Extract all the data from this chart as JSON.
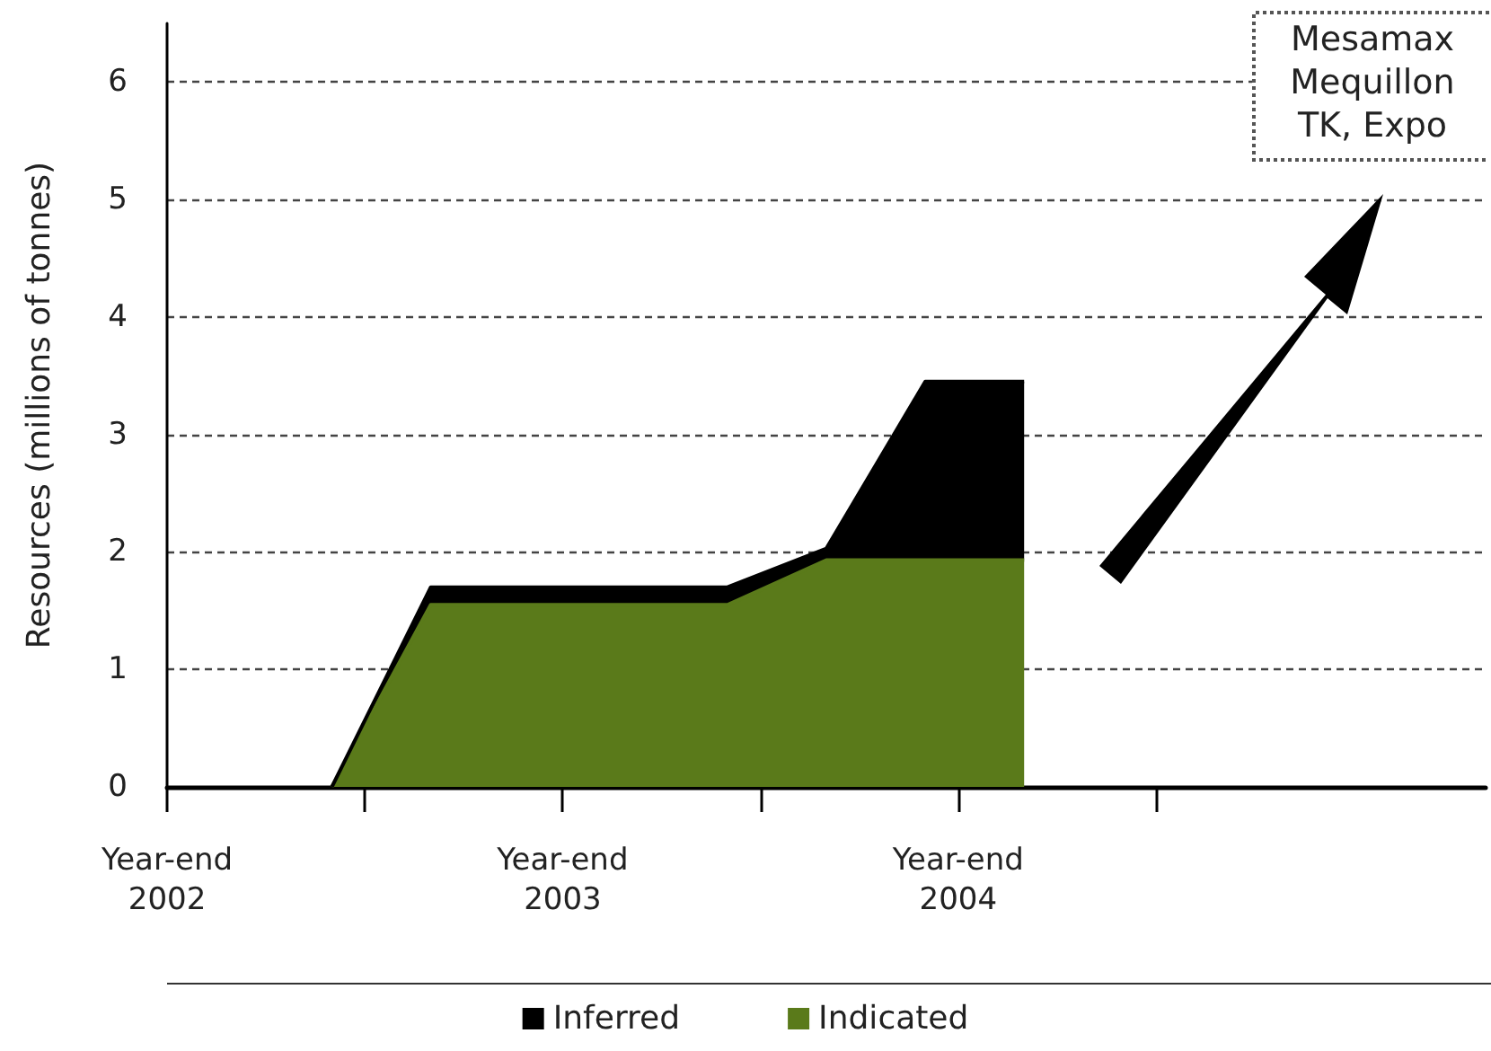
{
  "chart_data": {
    "type": "area",
    "stacked": true,
    "ylabel": "Resources (millions of tonnes)",
    "categories": [
      "Year-end\n2002",
      null,
      null,
      null,
      null,
      null,
      null,
      null,
      null,
      null,
      null,
      null,
      "Year-end\n2003",
      null,
      null,
      null,
      null,
      null,
      null,
      null,
      null,
      null,
      null,
      null,
      "Year-end\n2004",
      null,
      null,
      null,
      null,
      null,
      null,
      null,
      null,
      null,
      null,
      null,
      null,
      null,
      null,
      null,
      null
    ],
    "series": [
      {
        "name": "Indicated",
        "color": "#5a7a1a",
        "values": [
          null,
          null,
          null,
          null,
          null,
          0,
          null,
          null,
          1.55,
          null,
          null,
          null,
          null,
          null,
          null,
          null,
          null,
          1.55,
          null,
          null,
          1.93,
          null,
          null,
          1.93,
          null,
          null,
          1.93,
          null,
          null,
          null,
          null,
          null,
          null,
          null,
          null,
          null,
          null,
          null,
          null,
          null,
          null
        ]
      },
      {
        "name": "Inferred",
        "color": "#000000",
        "values": [
          null,
          null,
          null,
          null,
          null,
          0,
          null,
          null,
          0.15,
          null,
          null,
          null,
          null,
          null,
          null,
          null,
          null,
          0.15,
          null,
          null,
          0.1,
          null,
          null,
          1.52,
          null,
          null,
          1.52,
          null,
          null,
          null,
          null,
          null,
          null,
          null,
          null,
          null,
          null,
          null,
          null,
          null,
          null
        ]
      }
    ],
    "ylim": [
      0,
      6.5
    ],
    "yticks": [
      0,
      1,
      2,
      3,
      4,
      5,
      6
    ],
    "grid": "y",
    "legend": "bottom",
    "annotations": [
      "Mesamax\nMequillon\nTK, Expo"
    ]
  }
}
